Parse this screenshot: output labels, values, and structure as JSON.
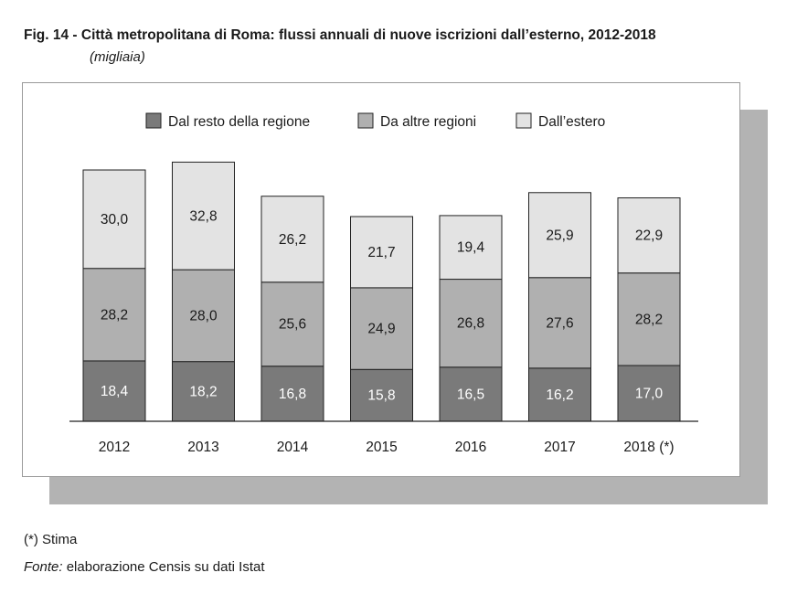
{
  "figure": {
    "title": "Fig. 14 - Città metropolitana di Roma: flussi annuali di nuove iscrizioni dall’esterno, 2012-2018",
    "subtitle": "(migliaia)"
  },
  "footer": {
    "note": "(*) Stima",
    "source_label": "Fonte:",
    "source_text": "elaborazione Censis su dati Istat"
  },
  "chart_data": {
    "type": "bar",
    "stacked": true,
    "categories": [
      "2012",
      "2013",
      "2014",
      "2015",
      "2016",
      "2017",
      "2018 (*)"
    ],
    "series": [
      {
        "name": "Dal resto della regione",
        "color": "#7a7a7a",
        "values": [
          18.4,
          18.2,
          16.8,
          15.8,
          16.5,
          16.2,
          17.0
        ],
        "labels": [
          "18,4",
          "18,2",
          "16,8",
          "15,8",
          "16,5",
          "16,2",
          "17,0"
        ]
      },
      {
        "name": "Da altre regioni",
        "color": "#b0b0b0",
        "values": [
          28.2,
          28.0,
          25.6,
          24.9,
          26.8,
          27.6,
          28.2
        ],
        "labels": [
          "28,2",
          "28,0",
          "25,6",
          "24,9",
          "26,8",
          "27,6",
          "28,2"
        ]
      },
      {
        "name": "Dall’estero",
        "color": "#e3e3e3",
        "values": [
          30.0,
          32.8,
          26.2,
          21.7,
          19.4,
          25.9,
          22.9
        ],
        "labels": [
          "30,0",
          "32,8",
          "26,2",
          "21,7",
          "19,4",
          "25,9",
          "22,9"
        ]
      }
    ],
    "ylim": [
      0,
      80
    ],
    "grid": false,
    "legend": "top"
  }
}
